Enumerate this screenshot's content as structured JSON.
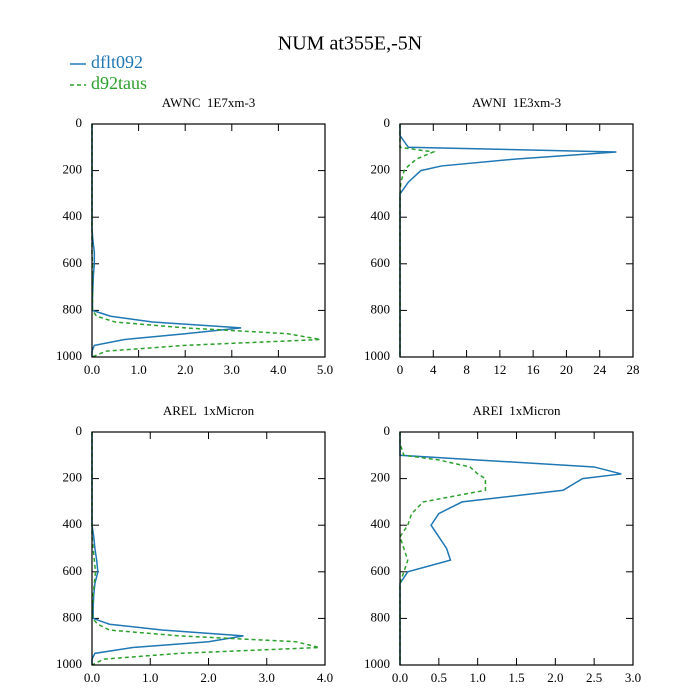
{
  "title": "NUM at355E,-5N",
  "chart_data": [
    {
      "type": "line",
      "title": "AWNC  1E7xm-3",
      "levels": [
        0,
        50,
        100,
        120,
        150,
        180,
        200,
        250,
        300,
        350,
        400,
        450,
        500,
        550,
        600,
        650,
        700,
        750,
        800,
        825,
        850,
        875,
        900,
        925,
        950,
        975,
        1000
      ],
      "series": [
        {
          "name": "dflt092",
          "color": "#1f77b4",
          "dashed": false,
          "values": [
            0,
            0,
            0,
            0,
            0,
            0,
            0,
            0,
            0,
            0,
            0,
            0,
            0.02,
            0.05,
            0.05,
            0.03,
            0.02,
            0.01,
            0.01,
            0.4,
            1.3,
            3.2,
            2.0,
            0.7,
            0.05,
            0,
            0
          ]
        },
        {
          "name": "d92taus",
          "color": "#2ca02c",
          "dashed": true,
          "values": [
            0,
            0,
            0,
            0,
            0,
            0,
            0,
            0,
            0,
            0,
            0,
            0,
            0,
            0,
            0.01,
            0.01,
            0.01,
            0.01,
            0.01,
            0.1,
            0.5,
            2.0,
            4.2,
            4.9,
            2.0,
            0.3,
            0
          ]
        }
      ],
      "xlim": [
        0,
        5
      ],
      "ylim": [
        1000,
        0
      ],
      "xticks": [
        {
          "value": 0,
          "label": "0.0"
        },
        {
          "value": 1,
          "label": "1.0"
        },
        {
          "value": 2,
          "label": "2.0"
        },
        {
          "value": 3,
          "label": "3.0"
        },
        {
          "value": 4,
          "label": "4.0"
        },
        {
          "value": 5,
          "label": "5.0"
        }
      ],
      "yticks": [
        0,
        200,
        400,
        600,
        800,
        1000
      ]
    },
    {
      "type": "line",
      "title": "AWNI  1E3xm-3",
      "levels": [
        0,
        50,
        100,
        120,
        150,
        180,
        200,
        250,
        300,
        350,
        400,
        450,
        500,
        550,
        600,
        650,
        700,
        750,
        800,
        825,
        850,
        875,
        900,
        925,
        950,
        975,
        1000
      ],
      "series": [
        {
          "name": "dflt092",
          "color": "#1f77b4",
          "dashed": false,
          "values": [
            0,
            0,
            1,
            26,
            14,
            5,
            2.5,
            1,
            0,
            0,
            0,
            0,
            0,
            0,
            0,
            0,
            0,
            0,
            0,
            0,
            0,
            0,
            0,
            0,
            0,
            0,
            0
          ]
        },
        {
          "name": "d92taus",
          "color": "#2ca02c",
          "dashed": true,
          "values": [
            0,
            0,
            0,
            4,
            2,
            1,
            0.5,
            0.1,
            0,
            0,
            0,
            0,
            0,
            0,
            0,
            0,
            0,
            0,
            0,
            0,
            0,
            0,
            0,
            0,
            0,
            0,
            0
          ]
        }
      ],
      "xlim": [
        0,
        28
      ],
      "ylim": [
        1000,
        0
      ],
      "xticks": [
        0,
        4,
        8,
        12,
        16,
        20,
        24,
        28
      ],
      "yticks": [
        0,
        200,
        400,
        600,
        800,
        1000
      ]
    },
    {
      "type": "line",
      "title": "AREL  1xMicron",
      "levels": [
        0,
        50,
        100,
        120,
        150,
        180,
        200,
        250,
        300,
        350,
        400,
        450,
        500,
        550,
        600,
        650,
        700,
        750,
        800,
        825,
        850,
        875,
        900,
        925,
        950,
        975,
        1000
      ],
      "series": [
        {
          "name": "dflt092",
          "color": "#1f77b4",
          "dashed": false,
          "values": [
            0,
            0,
            0,
            0,
            0,
            0,
            0,
            0,
            0,
            0,
            0,
            0.03,
            0.05,
            0.08,
            0.1,
            0.05,
            0.03,
            0.02,
            0.02,
            0.3,
            1.2,
            2.6,
            2.0,
            0.7,
            0.05,
            0,
            0
          ]
        },
        {
          "name": "d92taus",
          "color": "#2ca02c",
          "dashed": true,
          "values": [
            0,
            0,
            0,
            0,
            0,
            0,
            0,
            0,
            0,
            0,
            0,
            0,
            0.02,
            0.04,
            0.06,
            0.04,
            0.02,
            0.01,
            0.01,
            0.1,
            0.3,
            1.5,
            3.5,
            3.9,
            1.5,
            0.2,
            0
          ]
        }
      ],
      "xlim": [
        0,
        4
      ],
      "ylim": [
        1000,
        0
      ],
      "xticks": [
        {
          "value": 0,
          "label": "0.0"
        },
        {
          "value": 1,
          "label": "1.0"
        },
        {
          "value": 2,
          "label": "2.0"
        },
        {
          "value": 3,
          "label": "3.0"
        },
        {
          "value": 4,
          "label": "4.0"
        }
      ],
      "yticks": [
        0,
        200,
        400,
        600,
        800,
        1000
      ]
    },
    {
      "type": "line",
      "title": "AREI  1xMicron",
      "levels": [
        0,
        50,
        100,
        120,
        150,
        180,
        200,
        250,
        300,
        350,
        400,
        450,
        500,
        550,
        600,
        650,
        700,
        750,
        800,
        825,
        850,
        875,
        900,
        925,
        950,
        975,
        1000
      ],
      "series": [
        {
          "name": "dflt092",
          "color": "#1f77b4",
          "dashed": false,
          "values": [
            0,
            0,
            0,
            1.0,
            2.5,
            2.85,
            2.35,
            2.1,
            0.8,
            0.5,
            0.4,
            0.5,
            0.6,
            0.65,
            0.1,
            0,
            0,
            0,
            0,
            0,
            0,
            0,
            0,
            0,
            0,
            0,
            0
          ]
        },
        {
          "name": "d92taus",
          "color": "#2ca02c",
          "dashed": true,
          "values": [
            0,
            0,
            0.05,
            0.5,
            0.9,
            1.0,
            1.1,
            1.1,
            0.3,
            0.15,
            0.1,
            0,
            0.05,
            0.1,
            0.05,
            0,
            0,
            0,
            0,
            0,
            0,
            0,
            0,
            0,
            0,
            0,
            0
          ]
        }
      ],
      "xlim": [
        0,
        3
      ],
      "ylim": [
        1000,
        0
      ],
      "xticks": [
        {
          "value": 0,
          "label": "0.0"
        },
        {
          "value": 0.5,
          "label": "0.5"
        },
        {
          "value": 1,
          "label": "1.0"
        },
        {
          "value": 1.5,
          "label": "1.5"
        },
        {
          "value": 2,
          "label": "2.0"
        },
        {
          "value": 2.5,
          "label": "2.5"
        },
        {
          "value": 3,
          "label": "3.0"
        }
      ],
      "yticks": [
        0,
        200,
        400,
        600,
        800,
        1000
      ]
    }
  ]
}
